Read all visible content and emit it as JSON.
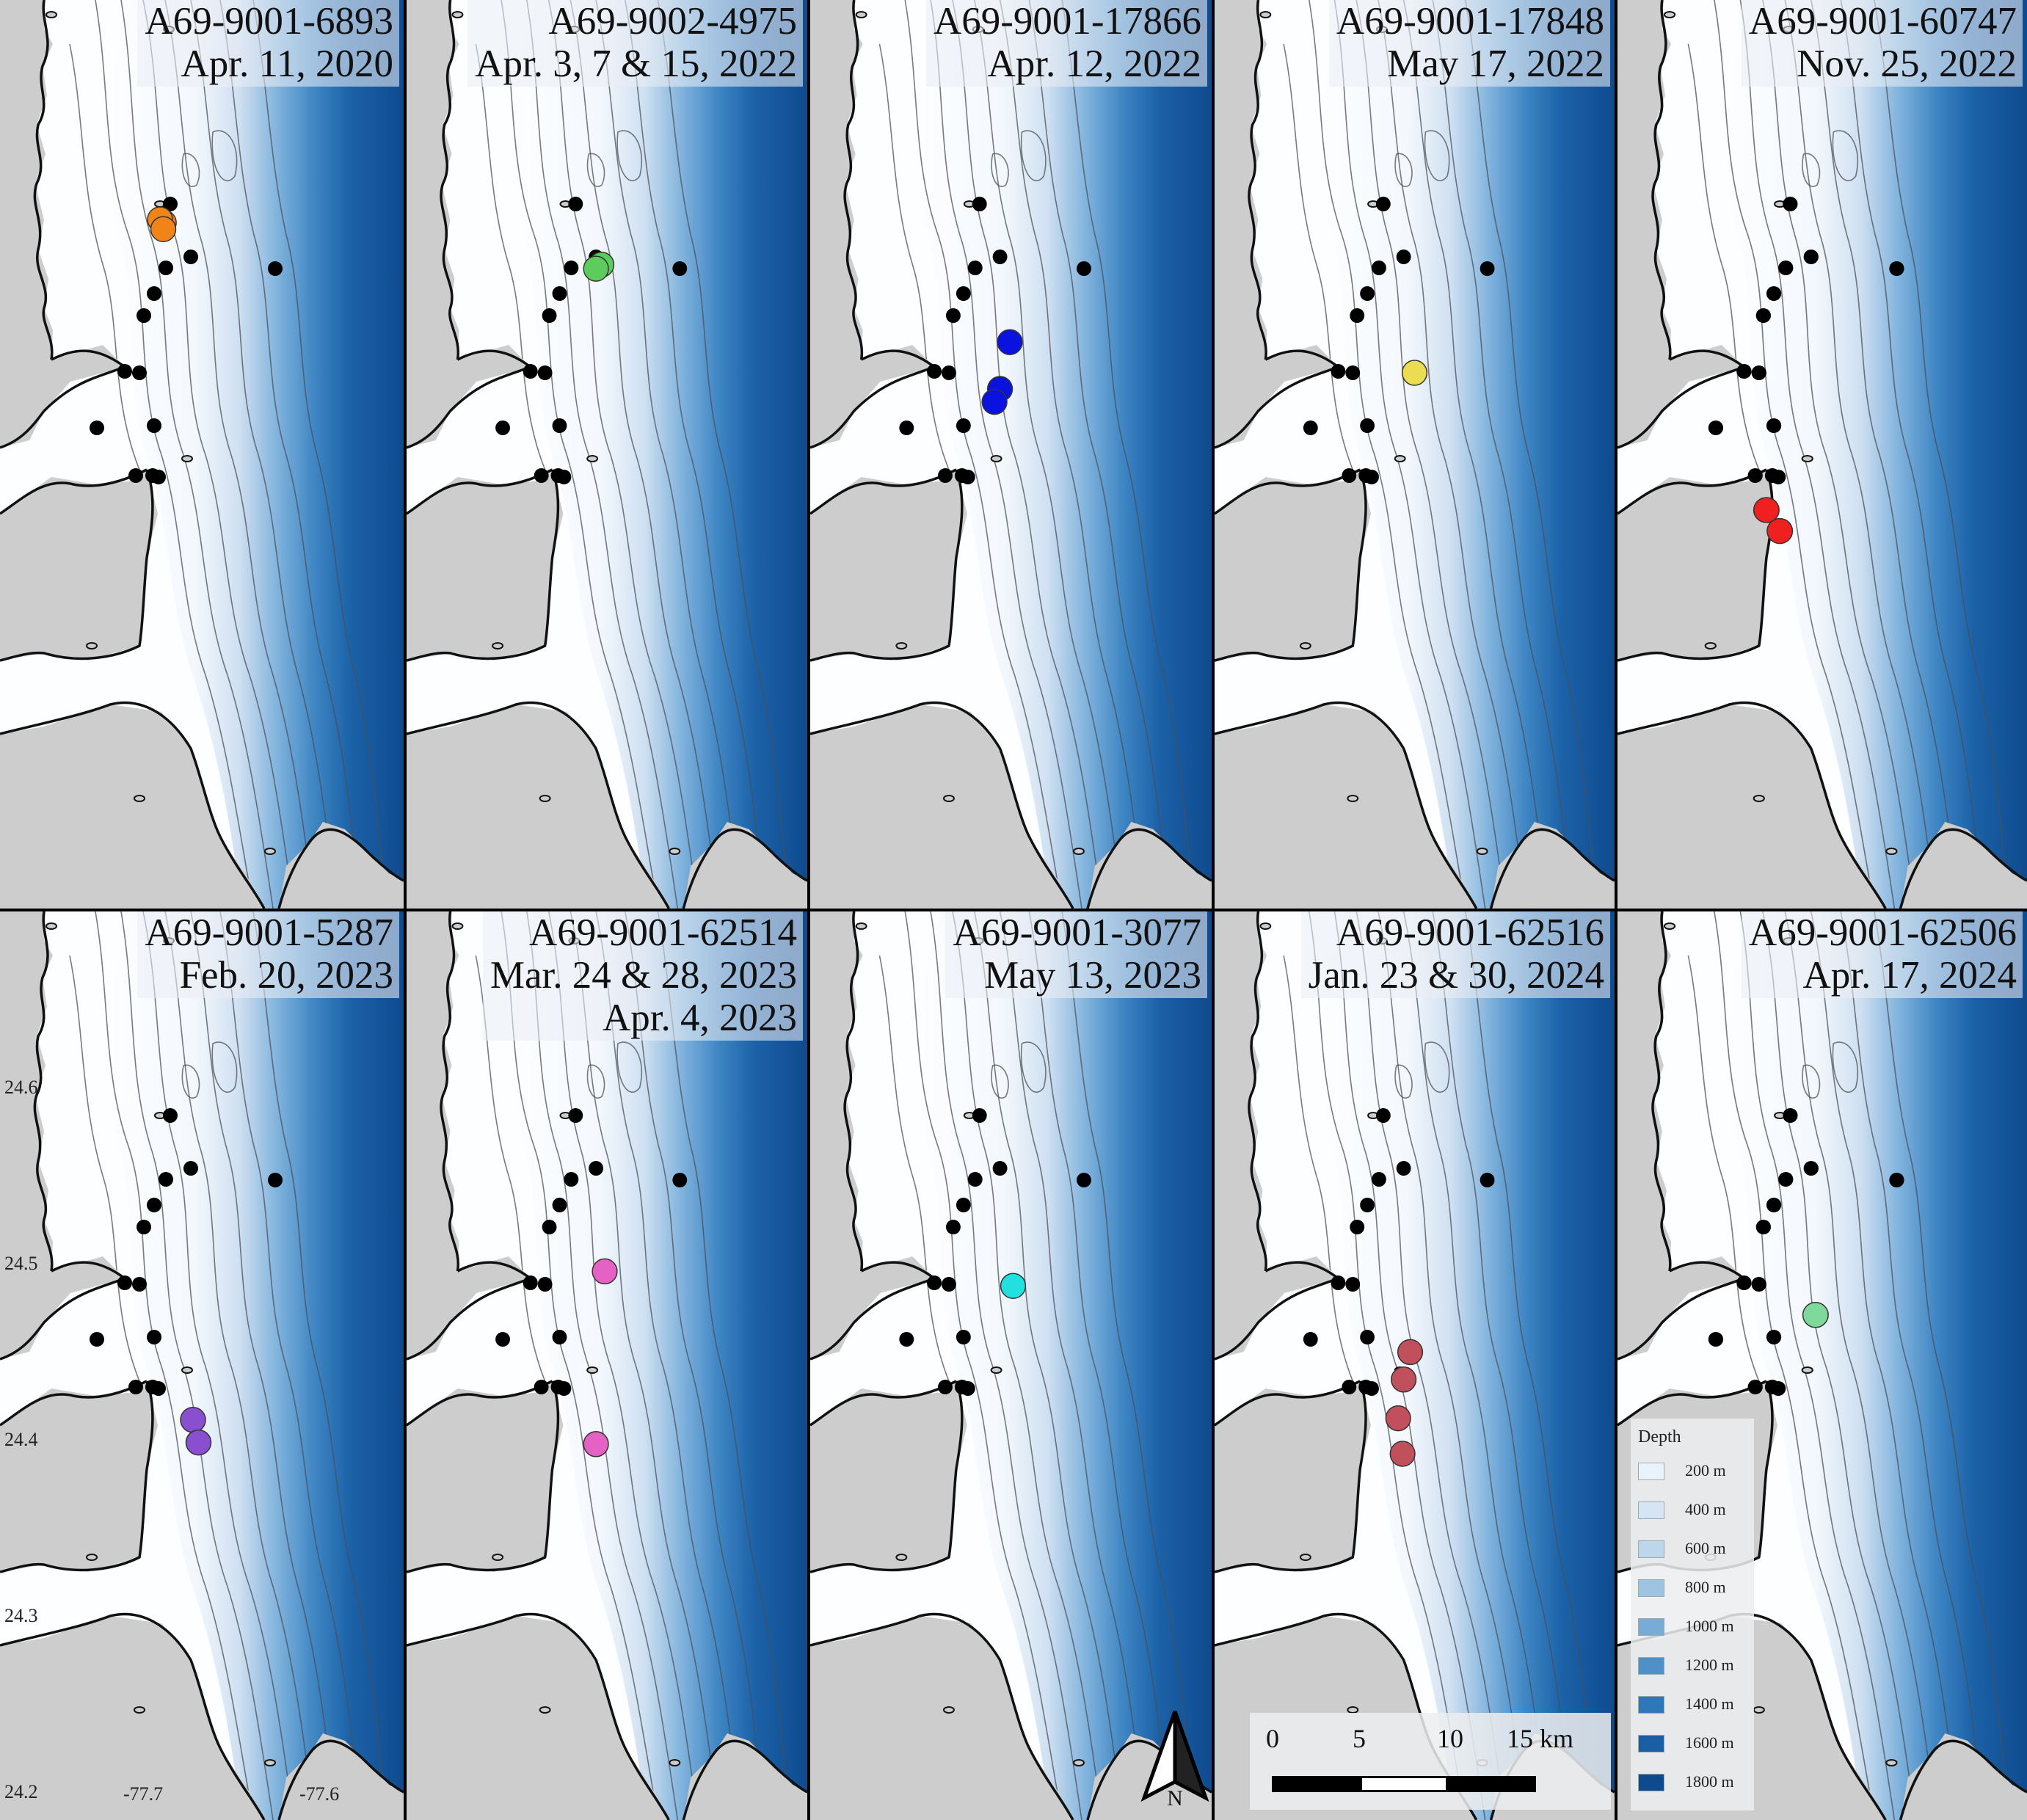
{
  "panels": [
    {
      "id": "A69-9001-6893",
      "dates": [
        "Apr. 11, 2020"
      ],
      "color": "#f08418",
      "detections": [
        [
          0.77,
          4.7
        ],
        [
          0.6,
          4.5
        ],
        [
          0.75,
          5.1
        ]
      ]
    },
    {
      "id": "A69-9002-4975",
      "dates": [
        "Apr. 3, 7 & 15, 2022"
      ],
      "color": "#5ccc5c",
      "detections": [
        [
          2.25,
          7.3
        ],
        [
          2.0,
          7.55
        ]
      ]
    },
    {
      "id": "A69-9001-17866",
      "dates": [
        "Apr. 12, 2022"
      ],
      "color": "#0a12e0",
      "detections": [
        [
          2.45,
          12.1
        ],
        [
          2.0,
          15.0
        ],
        [
          1.75,
          15.8
        ]
      ]
    },
    {
      "id": "A69-9001-17848",
      "dates": [
        "May 17, 2022"
      ],
      "color": "#ebdc52",
      "detections": [
        [
          2.5,
          14.0
        ]
      ]
    },
    {
      "id": "A69-9001-60747",
      "dates": [
        "Nov. 25, 2022"
      ],
      "color": "#ee2020",
      "detections": [
        [
          0.0,
          22.5
        ],
        [
          0.6,
          23.8
        ]
      ]
    },
    {
      "id": "A69-9001-5287",
      "dates": [
        "Feb. 20, 2023"
      ],
      "color": "#8a4fd1",
      "detections": [
        [
          2.1,
          22.4
        ],
        [
          2.35,
          23.8
        ]
      ]
    },
    {
      "id": "A69-9001-62514",
      "dates": [
        "Mar. 24 & 28, 2023",
        "Apr. 4, 2023"
      ],
      "color": "#e561c3",
      "detections": [
        [
          2.4,
          13.2
        ],
        [
          2.0,
          23.9
        ]
      ]
    },
    {
      "id": "A69-9001-3077",
      "dates": [
        "May 13, 2023"
      ],
      "color": "#22e0e0",
      "detections": [
        [
          2.6,
          14.1
        ]
      ]
    },
    {
      "id": "A69-9001-62516",
      "dates": [
        "Jan. 23 & 30, 2024"
      ],
      "color": "#c0505c",
      "detections": [
        [
          2.3,
          18.2
        ],
        [
          2.0,
          19.9
        ],
        [
          1.75,
          22.3
        ],
        [
          1.95,
          24.5
        ]
      ]
    },
    {
      "id": "A69-9001-62506",
      "dates": [
        "Apr. 17, 2024"
      ],
      "color": "#7fd99a",
      "detections": [
        [
          2.2,
          15.9
        ]
      ]
    }
  ],
  "axes": {
    "lat_ticks": [
      "24.6",
      "24.5",
      "24.4",
      "24.3",
      "24.2"
    ],
    "lon_ticks": [
      "-77.7",
      "-77.6"
    ]
  },
  "legend": {
    "title": "Depth",
    "items": [
      {
        "label": "200 m",
        "color": "#eaf2fb"
      },
      {
        "label": "400 m",
        "color": "#d6e5f4"
      },
      {
        "label": "600 m",
        "color": "#bed6ec"
      },
      {
        "label": "800 m",
        "color": "#9ec4e3"
      },
      {
        "label": "1000 m",
        "color": "#78acd6"
      },
      {
        "label": "1200 m",
        "color": "#4e91c8"
      },
      {
        "label": "1400 m",
        "color": "#2f77b8"
      },
      {
        "label": "1600 m",
        "color": "#1b5ea4"
      },
      {
        "label": "1800 m",
        "color": "#0f4a8e"
      }
    ]
  },
  "scale_bar": {
    "labels": [
      "0",
      "5",
      "10",
      "15 km"
    ]
  },
  "north_arrow": {
    "label": "N"
  }
}
